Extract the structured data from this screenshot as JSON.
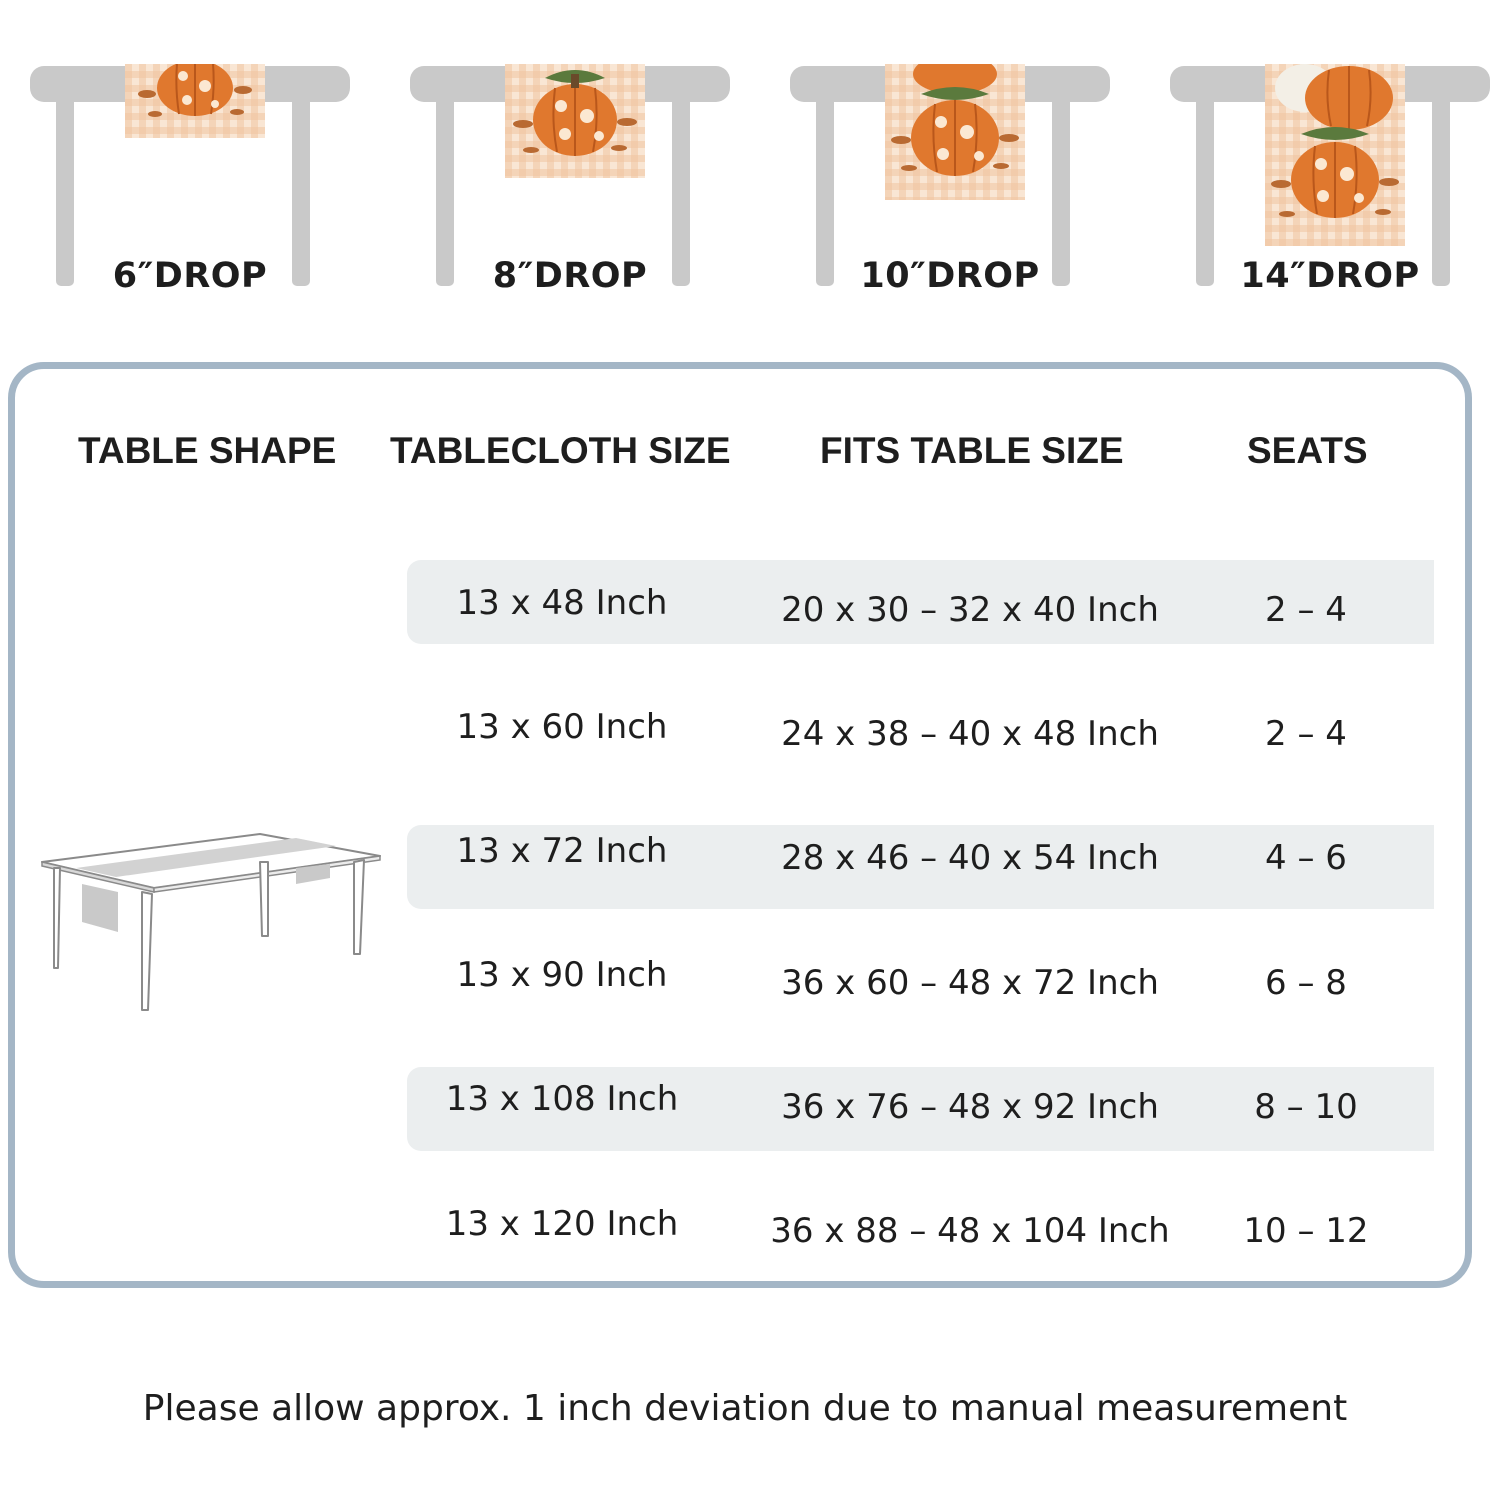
{
  "drop_options": [
    {
      "label": "6″DROP"
    },
    {
      "label": "8″DROP"
    },
    {
      "label": "10″DROP"
    },
    {
      "label": "14″DROP"
    }
  ],
  "table": {
    "headers": {
      "shape": "TABLE SHAPE",
      "tablecloth_size": "TABLECLOTH SIZE",
      "fits_table_size": "FITS TABLE SIZE",
      "seats": "SEATS"
    },
    "rows": [
      {
        "tablecloth_size": "13 x 48 Inch",
        "fits_table_size": "20 x 30 – 32 x 40 Inch",
        "seats": "2 – 4"
      },
      {
        "tablecloth_size": "13 x 60 Inch",
        "fits_table_size": "24 x 38 – 40 x 48 Inch",
        "seats": "2 – 4"
      },
      {
        "tablecloth_size": "13 x 72 Inch",
        "fits_table_size": "28 x 46 – 40 x 54 Inch",
        "seats": "4 – 6"
      },
      {
        "tablecloth_size": "13 x 90 Inch",
        "fits_table_size": "36 x 60 – 48 x 72 Inch",
        "seats": "6 – 8"
      },
      {
        "tablecloth_size": "13 x 108 Inch",
        "fits_table_size": "36 x 76 – 48 x 92 Inch",
        "seats": "8 – 10"
      },
      {
        "tablecloth_size": "13 x 120 Inch",
        "fits_table_size": "36 x 88 – 48 x 104 Inch",
        "seats": "10 – 12"
      }
    ]
  },
  "footnote": "Please allow approx. 1 inch deviation due to manual measurement",
  "colors": {
    "panel_border": "#a4b6c6",
    "row_band": "#ebeeef",
    "table_grey": "#c9c9c9",
    "pumpkin_orange": "#e0782e",
    "gingham_peach": "#f9e6d4"
  }
}
